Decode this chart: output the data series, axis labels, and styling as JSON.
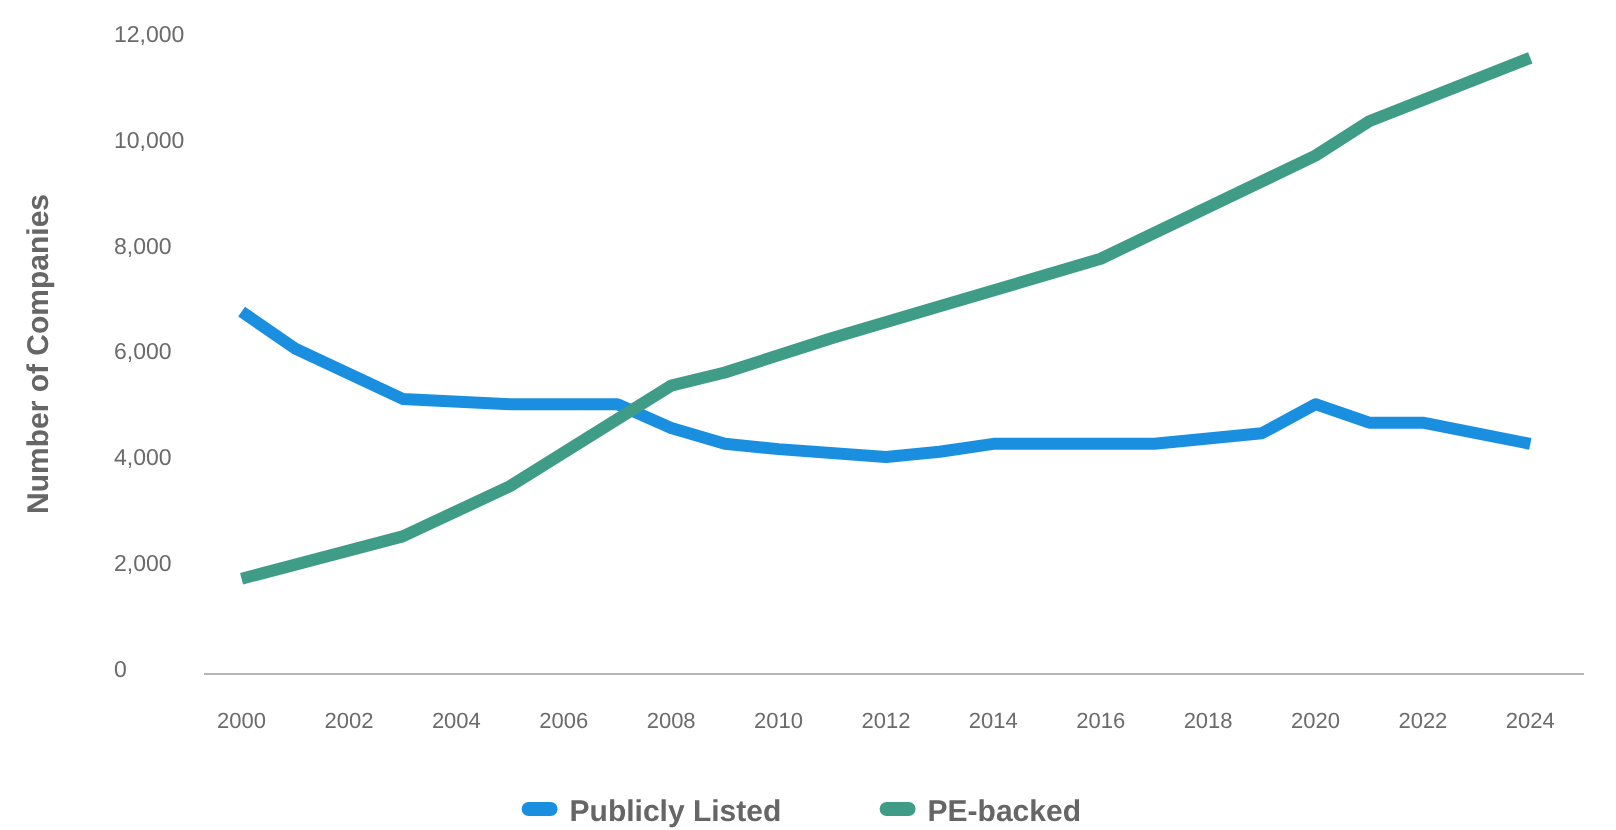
{
  "chart_data": {
    "type": "line",
    "ylabel": "Number of Companies",
    "xlim": [
      1999.3,
      2025
    ],
    "xticks": [
      2000,
      2002,
      2004,
      2006,
      2008,
      2010,
      2012,
      2014,
      2016,
      2018,
      2020,
      2022,
      2024
    ],
    "ylim": [
      0,
      12000
    ],
    "yticks": [
      {
        "value": 0,
        "label": "0"
      },
      {
        "value": 2000,
        "label": "2,000"
      },
      {
        "value": 4000,
        "label": "4,000"
      },
      {
        "value": 6000,
        "label": "6,000"
      },
      {
        "value": 8000,
        "label": "8,000"
      },
      {
        "value": 10000,
        "label": "10,000"
      },
      {
        "value": 12000,
        "label": "12,000"
      }
    ],
    "grid": false,
    "legend": "bottom",
    "marker": "none",
    "line_style": "solid",
    "series": [
      {
        "name": "Publicly Listed",
        "color": "#1a8fe0",
        "x": [
          2000,
          2001,
          2003,
          2005,
          2007,
          2008,
          2009,
          2010,
          2012,
          2013,
          2014,
          2017,
          2019,
          2020,
          2021,
          2022,
          2024
        ],
        "values": [
          6750,
          6050,
          5100,
          5000,
          5000,
          4550,
          4250,
          4150,
          4000,
          4100,
          4250,
          4250,
          4450,
          5000,
          4650,
          4650,
          4250
        ]
      },
      {
        "name": "PE-backed",
        "color": "#3f9c87",
        "x": [
          2000,
          2003,
          2005,
          2008,
          2009,
          2011,
          2013,
          2016,
          2020,
          2021,
          2024
        ],
        "values": [
          1700,
          2500,
          3450,
          5350,
          5600,
          6250,
          6850,
          7750,
          9700,
          10350,
          11550
        ]
      }
    ]
  }
}
